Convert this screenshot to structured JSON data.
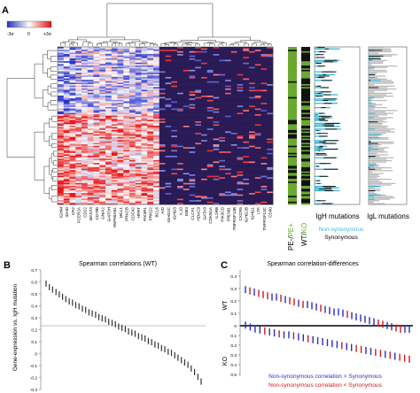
{
  "panels": {
    "a": "A",
    "b": "B",
    "c": "C"
  },
  "colorbar": {
    "low": "-3σ",
    "mid": "0",
    "high": "+3σ"
  },
  "heatmap_genes": [
    "IGHM",
    "IGHD",
    "CR2",
    "FCER2A",
    "CD22",
    "MAST3",
    "CD79b",
    "GNAI2",
    "GAPDH",
    "HSP90AB1",
    "MCL1",
    "PRKCB",
    "CDC42",
    "HPRT",
    "PIK3R1",
    "PRKD2",
    "BCL6",
    "AID",
    "IGHG2C",
    "IGHG3",
    "IL10",
    "EBI3",
    "CLCF1",
    "HDAC9",
    "GATA3",
    "CDKN1A",
    "IL2RB",
    "PIK3CD",
    "PRDM1",
    "TNFRSF13B",
    "CXCR5",
    "IGHG2B",
    "IGHG1",
    "LTA",
    "TNFRSF13C",
    "CD40"
  ],
  "side_labels": {
    "pe_prefix": "PE-",
    "pe_slash": "/",
    "pe_suffix": "PE+",
    "wt": "WT",
    "wt_slash": "/",
    "ko": "KO",
    "igh": "IgH mutations",
    "igl": "IgL mutations"
  },
  "legend_a": {
    "nonsyn": "Non-synonymous",
    "syn": "Synonymous"
  },
  "colors": {
    "green": "#6aa830",
    "cyan": "#3bb6d6",
    "navy": "#2a1a55",
    "blue": "#2d2dbd",
    "red": "#d11a1a"
  },
  "panel_b": {
    "title": "Spearman correlations (WT)",
    "ylabel": "Gene-expression vs. IgH mutation",
    "yticks": [
      "0.7",
      "0.6",
      "0.5",
      "0.4",
      "0.3",
      "0.2",
      "0.1",
      "0",
      "-0.1",
      "-0.2",
      "-0.3"
    ]
  },
  "panel_c": {
    "title": "Spearman correlation-differences",
    "wt": "WT",
    "ko": "KO",
    "yticks_top": [
      "0.4",
      "0.3",
      "0.2",
      "0.1",
      "0"
    ],
    "yticks_bottom": [
      "0",
      "0.1",
      "0.2",
      "0.3",
      "0.4",
      "0.5"
    ],
    "legend_blue": "Non-synonymous correlation > Synonymous",
    "legend_red": "Non-synonymous correlation < Synonymous"
  },
  "chart_data": [
    {
      "type": "scatter",
      "title": "Spearman correlations (WT)",
      "ylabel": "Gene-expression vs. IgH mutation",
      "ylim": [
        -0.3,
        0.7
      ],
      "values": [
        0.56,
        0.53,
        0.51,
        0.49,
        0.47,
        0.45,
        0.43,
        0.41,
        0.4,
        0.38,
        0.37,
        0.35,
        0.34,
        0.32,
        0.31,
        0.3,
        0.28,
        0.27,
        0.26,
        0.24,
        0.23,
        0.22,
        0.2,
        0.19,
        0.18,
        0.16,
        0.15,
        0.14,
        0.12,
        0.11,
        0.1,
        0.08,
        0.07,
        0.05,
        0.04,
        0.02,
        0.01,
        -0.01,
        -0.02,
        -0.04,
        -0.06,
        -0.08,
        -0.1,
        -0.12,
        -0.15,
        -0.18,
        -0.22,
        -0.26
      ]
    },
    {
      "type": "scatter",
      "title": "Spearman correlation-differences",
      "series": [
        {
          "name": "WT",
          "values": [
            0.32,
            0.31,
            0.3,
            0.29,
            0.28,
            0.27,
            0.26,
            0.26,
            0.25,
            0.24,
            0.23,
            0.22,
            0.21,
            0.2,
            0.2,
            0.19,
            0.18,
            0.17,
            0.16,
            0.15,
            0.14,
            0.14,
            0.13,
            0.12,
            0.11,
            0.1,
            0.09,
            0.08,
            0.07,
            0.06,
            0.05,
            0.04,
            0.03,
            0.02,
            0.01,
            0.0,
            0.0,
            0.0
          ]
        },
        {
          "name": "KO",
          "values": [
            0.03,
            0.05,
            0.07,
            0.08,
            0.09,
            0.1,
            0.11,
            0.12,
            0.13,
            0.13,
            0.14,
            0.15,
            0.16,
            0.17,
            0.18,
            0.19,
            0.2,
            0.21,
            0.22,
            0.23,
            0.24,
            0.25,
            0.26,
            0.27,
            0.28,
            0.29,
            0.3,
            0.31,
            0.32,
            0.33,
            0.34,
            0.35,
            0.36,
            0.37,
            0.38
          ]
        }
      ]
    }
  ]
}
